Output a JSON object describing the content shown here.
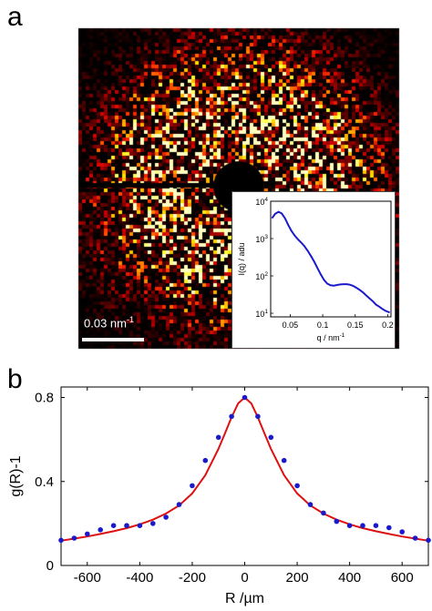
{
  "figure": {
    "panel_a_letter": "a",
    "panel_b_letter": "b",
    "scalebar": {
      "label_main": "0.03 nm",
      "label_exp": "-1"
    }
  },
  "chart_data": [
    {
      "type": "line",
      "panel": "a-inset",
      "xlabel": "q / nm",
      "xlabel_exp": "-1",
      "ylabel": "I(q) / adu",
      "xlim": [
        0.02,
        0.205
      ],
      "ylim": [
        8,
        10000
      ],
      "yscale": "log",
      "x_ticks": [
        "0.05",
        "0.1",
        "0.15",
        "0.2"
      ],
      "x_tick_values": [
        0.05,
        0.1,
        0.15,
        0.2
      ],
      "y_ticks": [
        {
          "base": "10",
          "exp": "1",
          "value": 10
        },
        {
          "base": "10",
          "exp": "2",
          "value": 100
        },
        {
          "base": "10",
          "exp": "3",
          "value": 1000
        },
        {
          "base": "10",
          "exp": "4",
          "value": 10000
        }
      ],
      "color": "#1a1acc",
      "series": [
        {
          "x": [
            0.022,
            0.027,
            0.032,
            0.037,
            0.042,
            0.047,
            0.052,
            0.057,
            0.062,
            0.067,
            0.072,
            0.077,
            0.082,
            0.087,
            0.092,
            0.097,
            0.102,
            0.107,
            0.112,
            0.117,
            0.122,
            0.127,
            0.132,
            0.137,
            0.142,
            0.147,
            0.152,
            0.157,
            0.162,
            0.167,
            0.172,
            0.177,
            0.182,
            0.187,
            0.192,
            0.197,
            0.203
          ],
          "y": [
            3500,
            4600,
            5200,
            4700,
            3500,
            2300,
            1600,
            1200,
            950,
            780,
            620,
            470,
            340,
            240,
            160,
            110,
            78,
            62,
            56,
            55,
            57,
            59,
            60,
            60,
            58,
            54,
            48,
            42,
            36,
            30,
            25,
            21,
            17,
            15,
            13,
            11.5,
            10.5
          ]
        }
      ]
    },
    {
      "type": "scatter",
      "panel": "b",
      "xlabel": "R /µm",
      "ylabel": "g(R)-1",
      "xlim": [
        -700,
        700
      ],
      "ylim": [
        0,
        0.85
      ],
      "x_ticks": [
        -600,
        -400,
        -200,
        0,
        200,
        400,
        600
      ],
      "y_ticks": [
        0,
        0.4,
        0.8
      ],
      "x_tick_labels": [
        "-600",
        "-400",
        "-200",
        "0",
        "200",
        "400",
        "600"
      ],
      "y_tick_labels": [
        "0",
        "0.4",
        "0.8"
      ],
      "grid": false,
      "point_color": "#1a1acc",
      "fit_color": "#dd1111",
      "points": {
        "x": [
          -700,
          -650,
          -600,
          -550,
          -500,
          -450,
          -400,
          -350,
          -300,
          -250,
          -200,
          -150,
          -100,
          -50,
          0,
          50,
          100,
          150,
          200,
          250,
          300,
          350,
          400,
          450,
          500,
          550,
          600,
          650,
          700
        ],
        "y": [
          0.12,
          0.13,
          0.15,
          0.17,
          0.19,
          0.19,
          0.19,
          0.2,
          0.23,
          0.29,
          0.38,
          0.5,
          0.61,
          0.71,
          0.8,
          0.71,
          0.61,
          0.5,
          0.38,
          0.29,
          0.25,
          0.21,
          0.19,
          0.19,
          0.19,
          0.18,
          0.16,
          0.13,
          0.12
        ]
      },
      "fit": {
        "x": [
          -700,
          -650,
          -600,
          -550,
          -500,
          -450,
          -400,
          -350,
          -300,
          -250,
          -200,
          -150,
          -100,
          -75,
          -50,
          -25,
          0,
          25,
          50,
          75,
          100,
          150,
          200,
          250,
          300,
          350,
          400,
          450,
          500,
          550,
          600,
          650,
          700
        ],
        "y": [
          0.118,
          0.128,
          0.138,
          0.15,
          0.163,
          0.178,
          0.196,
          0.218,
          0.247,
          0.286,
          0.343,
          0.43,
          0.555,
          0.63,
          0.706,
          0.772,
          0.8,
          0.772,
          0.706,
          0.63,
          0.555,
          0.43,
          0.343,
          0.286,
          0.247,
          0.218,
          0.196,
          0.178,
          0.163,
          0.15,
          0.138,
          0.128,
          0.118
        ]
      }
    }
  ]
}
